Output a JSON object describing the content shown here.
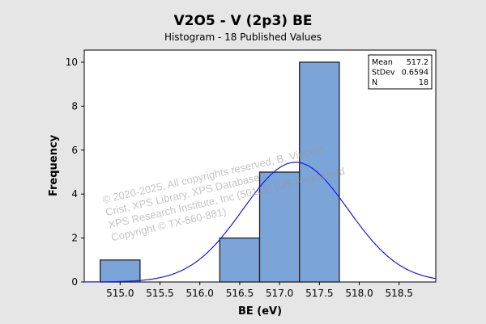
{
  "chart_data": {
    "type": "bar",
    "title": "V2O5 - V (2p3) BE",
    "subtitle": "Histogram - 18 Published Values",
    "xlabel": "BE (eV)",
    "ylabel": "Frequency",
    "xlim": [
      514.55,
      518.96
    ],
    "ylim": [
      0,
      10.55
    ],
    "xticks": [
      "515.0",
      "515.5",
      "516.0",
      "516.5",
      "517.0",
      "517.5",
      "518.0",
      "518.5"
    ],
    "yticks": [
      "0",
      "2",
      "4",
      "6",
      "8",
      "10"
    ],
    "bins": [
      {
        "start": 514.75,
        "end": 515.25,
        "count": 1
      },
      {
        "start": 516.25,
        "end": 516.75,
        "count": 2
      },
      {
        "start": 516.75,
        "end": 517.25,
        "count": 5
      },
      {
        "start": 517.25,
        "end": 517.75,
        "count": 10
      }
    ],
    "fit": {
      "type": "normal",
      "mean": 517.2,
      "stdev": 0.6594,
      "n": 18,
      "bin_width": 0.5
    },
    "bar_color": "#7ba5d8",
    "curve_color": "#1a1ae0",
    "legend": {
      "placement": "top-right",
      "rows": [
        {
          "label": "Mean",
          "value": "517.2"
        },
        {
          "label": "StDev",
          "value": "0.6594"
        },
        {
          "label": "N",
          "value": "18"
        }
      ]
    }
  },
  "watermark": {
    "line1": "© 2020-2025,  All copyrights reserved,   B. Vincent Crist,  XPS Library, XPS Database,",
    "line2": "XPS Research Institute, Inc (501c3)   (US Registered Copyright © TX-560-881)"
  }
}
